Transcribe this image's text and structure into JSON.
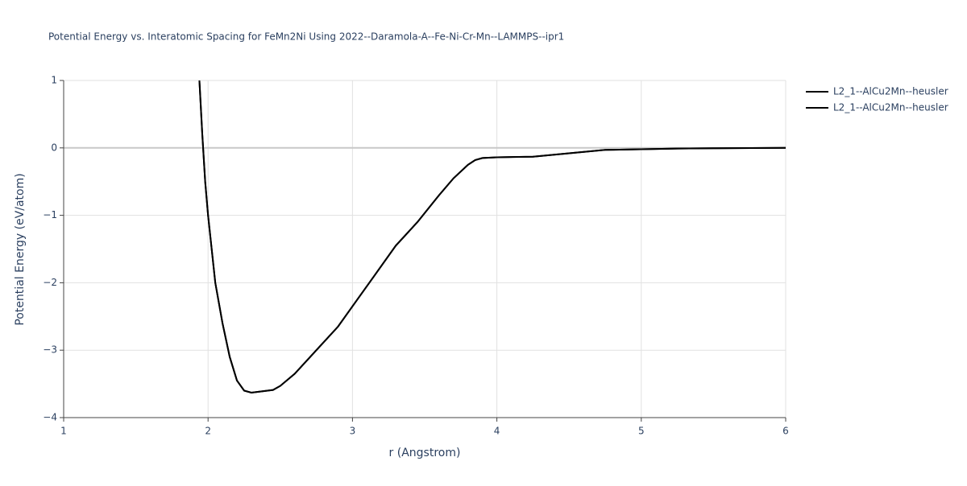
{
  "chart_data": {
    "type": "line",
    "title": "Potential Energy vs. Interatomic Spacing for FeMn2Ni Using 2022--Daramola-A--Fe-Ni-Cr-Mn--LAMMPS--ipr1",
    "x_label": "r (Angstrom)",
    "y_label": "Potential Energy (eV/atom)",
    "x": [
      1.94,
      1.96,
      1.98,
      2.0,
      2.05,
      2.1,
      2.15,
      2.2,
      2.25,
      2.3,
      2.45,
      2.5,
      2.6,
      2.75,
      2.9,
      3.0,
      3.15,
      3.3,
      3.45,
      3.6,
      3.7,
      3.8,
      3.85,
      3.9,
      4.0,
      4.25,
      4.5,
      4.75,
      5.0,
      5.25,
      5.5,
      6.0
    ],
    "series": [
      {
        "name": "L2_1--AlCu2Mn--heusler",
        "color": "#000000",
        "values": [
          1.0,
          0.2,
          -0.5,
          -1.0,
          -2.0,
          -2.6,
          -3.1,
          -3.45,
          -3.6,
          -3.63,
          -3.59,
          -3.53,
          -3.35,
          -3.0,
          -2.65,
          -2.35,
          -1.9,
          -1.45,
          -1.1,
          -0.7,
          -0.45,
          -0.25,
          -0.18,
          -0.15,
          -0.14,
          -0.13,
          -0.08,
          -0.03,
          -0.02,
          -0.01,
          -0.005,
          0
        ]
      },
      {
        "name": "L2_1--AlCu2Mn--heusler",
        "color": "#000000",
        "values": [
          1.0,
          0.2,
          -0.5,
          -1.0,
          -2.0,
          -2.6,
          -3.1,
          -3.45,
          -3.6,
          -3.63,
          -3.59,
          -3.53,
          -3.35,
          -3.0,
          -2.65,
          -2.35,
          -1.9,
          -1.45,
          -1.1,
          -0.7,
          -0.45,
          -0.25,
          -0.18,
          -0.15,
          -0.14,
          -0.13,
          -0.08,
          -0.03,
          -0.02,
          -0.01,
          -0.005,
          0
        ]
      }
    ],
    "xlim": [
      1,
      6
    ],
    "ylim": [
      -4,
      1
    ],
    "xticks": [
      1,
      2,
      3,
      4,
      5,
      6
    ],
    "yticks": [
      {
        "value": -4,
        "label": "−4"
      },
      {
        "value": -3,
        "label": "−3"
      },
      {
        "value": -2,
        "label": "−2"
      },
      {
        "value": -1,
        "label": "−1"
      },
      0,
      1
    ],
    "grid": true,
    "legend": "right"
  }
}
